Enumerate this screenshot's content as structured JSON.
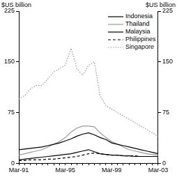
{
  "chart_data": {
    "type": "line",
    "ylabel": "$US billion",
    "y2label": "$US billion",
    "categories": [
      "Mar-91",
      null,
      null,
      null,
      null,
      null,
      null,
      null,
      "Mar-95",
      null,
      null,
      null,
      null,
      null,
      null,
      null,
      "Mar-99",
      null,
      null,
      null,
      null,
      null,
      null,
      null,
      "Mar-03"
    ],
    "series": [
      {
        "name": "Indonesia",
        "color": "#000000",
        "line_style": "solid",
        "values": [
          20,
          21,
          22,
          23,
          24,
          26,
          28,
          30,
          33,
          36,
          40,
          43,
          45,
          42,
          38,
          35,
          30,
          28,
          26,
          24,
          22,
          20,
          18,
          16,
          14
        ]
      },
      {
        "name": "Thailand",
        "color": "#999999",
        "line_style": "solid",
        "values": [
          12,
          14,
          16,
          18,
          20,
          24,
          28,
          32,
          38,
          46,
          52,
          55,
          55,
          54,
          45,
          38,
          32,
          28,
          24,
          20,
          18,
          16,
          14,
          13,
          12
        ]
      },
      {
        "name": "Malaysia",
        "color": "#000000",
        "line_style": "solid",
        "values": [
          5,
          6,
          7,
          8,
          9,
          10,
          11,
          12,
          13,
          14,
          16,
          18,
          20,
          17,
          14,
          13,
          12,
          12,
          11,
          11,
          10,
          10,
          10,
          10,
          10
        ]
      },
      {
        "name": "Philippines",
        "color": "#000000",
        "line_style": "dashed",
        "values": [
          4,
          4,
          5,
          5,
          5,
          6,
          6,
          7,
          8,
          9,
          10,
          12,
          14,
          15,
          14,
          13,
          12,
          12,
          11,
          11,
          11,
          10,
          10,
          10,
          10
        ]
      },
      {
        "name": "Singapore",
        "color": "#999999",
        "line_style": "dotted",
        "values": [
          95,
          100,
          110,
          115,
          115,
          125,
          135,
          140,
          145,
          170,
          140,
          130,
          145,
          150,
          100,
          85,
          80,
          75,
          70,
          65,
          60,
          55,
          50,
          45,
          40
        ]
      }
    ],
    "ylim": [
      0,
      225
    ],
    "yticks": [
      0,
      75,
      150,
      225
    ],
    "y2lim": [
      0,
      225
    ],
    "y2ticks": [
      0,
      75,
      150,
      225
    ],
    "grid": false,
    "legend": "top-right"
  }
}
